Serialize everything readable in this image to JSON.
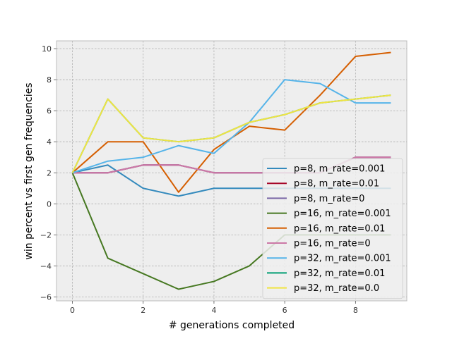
{
  "chart_data": {
    "type": "line",
    "title": "",
    "xlabel": "# generations completed",
    "ylabel": "win percent vs first gen frequencies",
    "xlim": [
      -0.45,
      9.45
    ],
    "ylim": [
      -6.25,
      10.5
    ],
    "xticks": [
      0,
      2,
      4,
      6,
      8
    ],
    "yticks": [
      -6,
      -4,
      -2,
      0,
      2,
      4,
      6,
      8,
      10
    ],
    "grid": true,
    "legend_position": "lower-right",
    "x": [
      0,
      1,
      2,
      3,
      4,
      5,
      6,
      7,
      8,
      9
    ],
    "series": [
      {
        "name": "p=8, m_rate=0.001",
        "color": "#348ABD",
        "values": [
          2,
          2.5,
          1,
          0.5,
          1,
          1,
          1,
          1,
          1,
          1
        ]
      },
      {
        "name": "p=8, m_rate=0.01",
        "color": "#A60628",
        "values": [
          2,
          2,
          2.5,
          2.5,
          2,
          2,
          2,
          2,
          3,
          3
        ]
      },
      {
        "name": "p=8, m_rate=0",
        "color": "#7A68A6",
        "values": [
          2,
          2,
          2.5,
          2.5,
          2,
          2,
          2,
          2,
          3,
          3
        ]
      },
      {
        "name": "p=16, m_rate=0.001",
        "color": "#467821",
        "values": [
          2,
          -3.5,
          -4.5,
          -5.5,
          -5,
          -4,
          -2,
          -2,
          -2,
          -2
        ]
      },
      {
        "name": "p=16, m_rate=0.01",
        "color": "#D55E00",
        "values": [
          2,
          4,
          4,
          0.75,
          3.5,
          5,
          4.75,
          7,
          9.5,
          9.75
        ]
      },
      {
        "name": "p=16, m_rate=0",
        "color": "#CC79A7",
        "values": [
          2,
          2,
          2.5,
          2.5,
          2,
          2,
          2,
          2,
          3,
          3
        ]
      },
      {
        "name": "p=32, m_rate=0.001",
        "color": "#56B4E9",
        "values": [
          2,
          2.75,
          3,
          3.75,
          3.25,
          5.25,
          8,
          7.75,
          6.5,
          6.5
        ]
      },
      {
        "name": "p=32, m_rate=0.01",
        "color": "#009E73",
        "values": [
          2,
          6.75,
          4.25,
          4,
          4.25,
          5.25,
          5.75,
          6.5,
          6.75,
          7
        ]
      },
      {
        "name": "p=32, m_rate=0.0",
        "color": "#F0E442",
        "values": [
          2,
          6.75,
          4.25,
          4,
          4.25,
          5.25,
          5.75,
          6.5,
          6.75,
          7
        ]
      }
    ]
  }
}
